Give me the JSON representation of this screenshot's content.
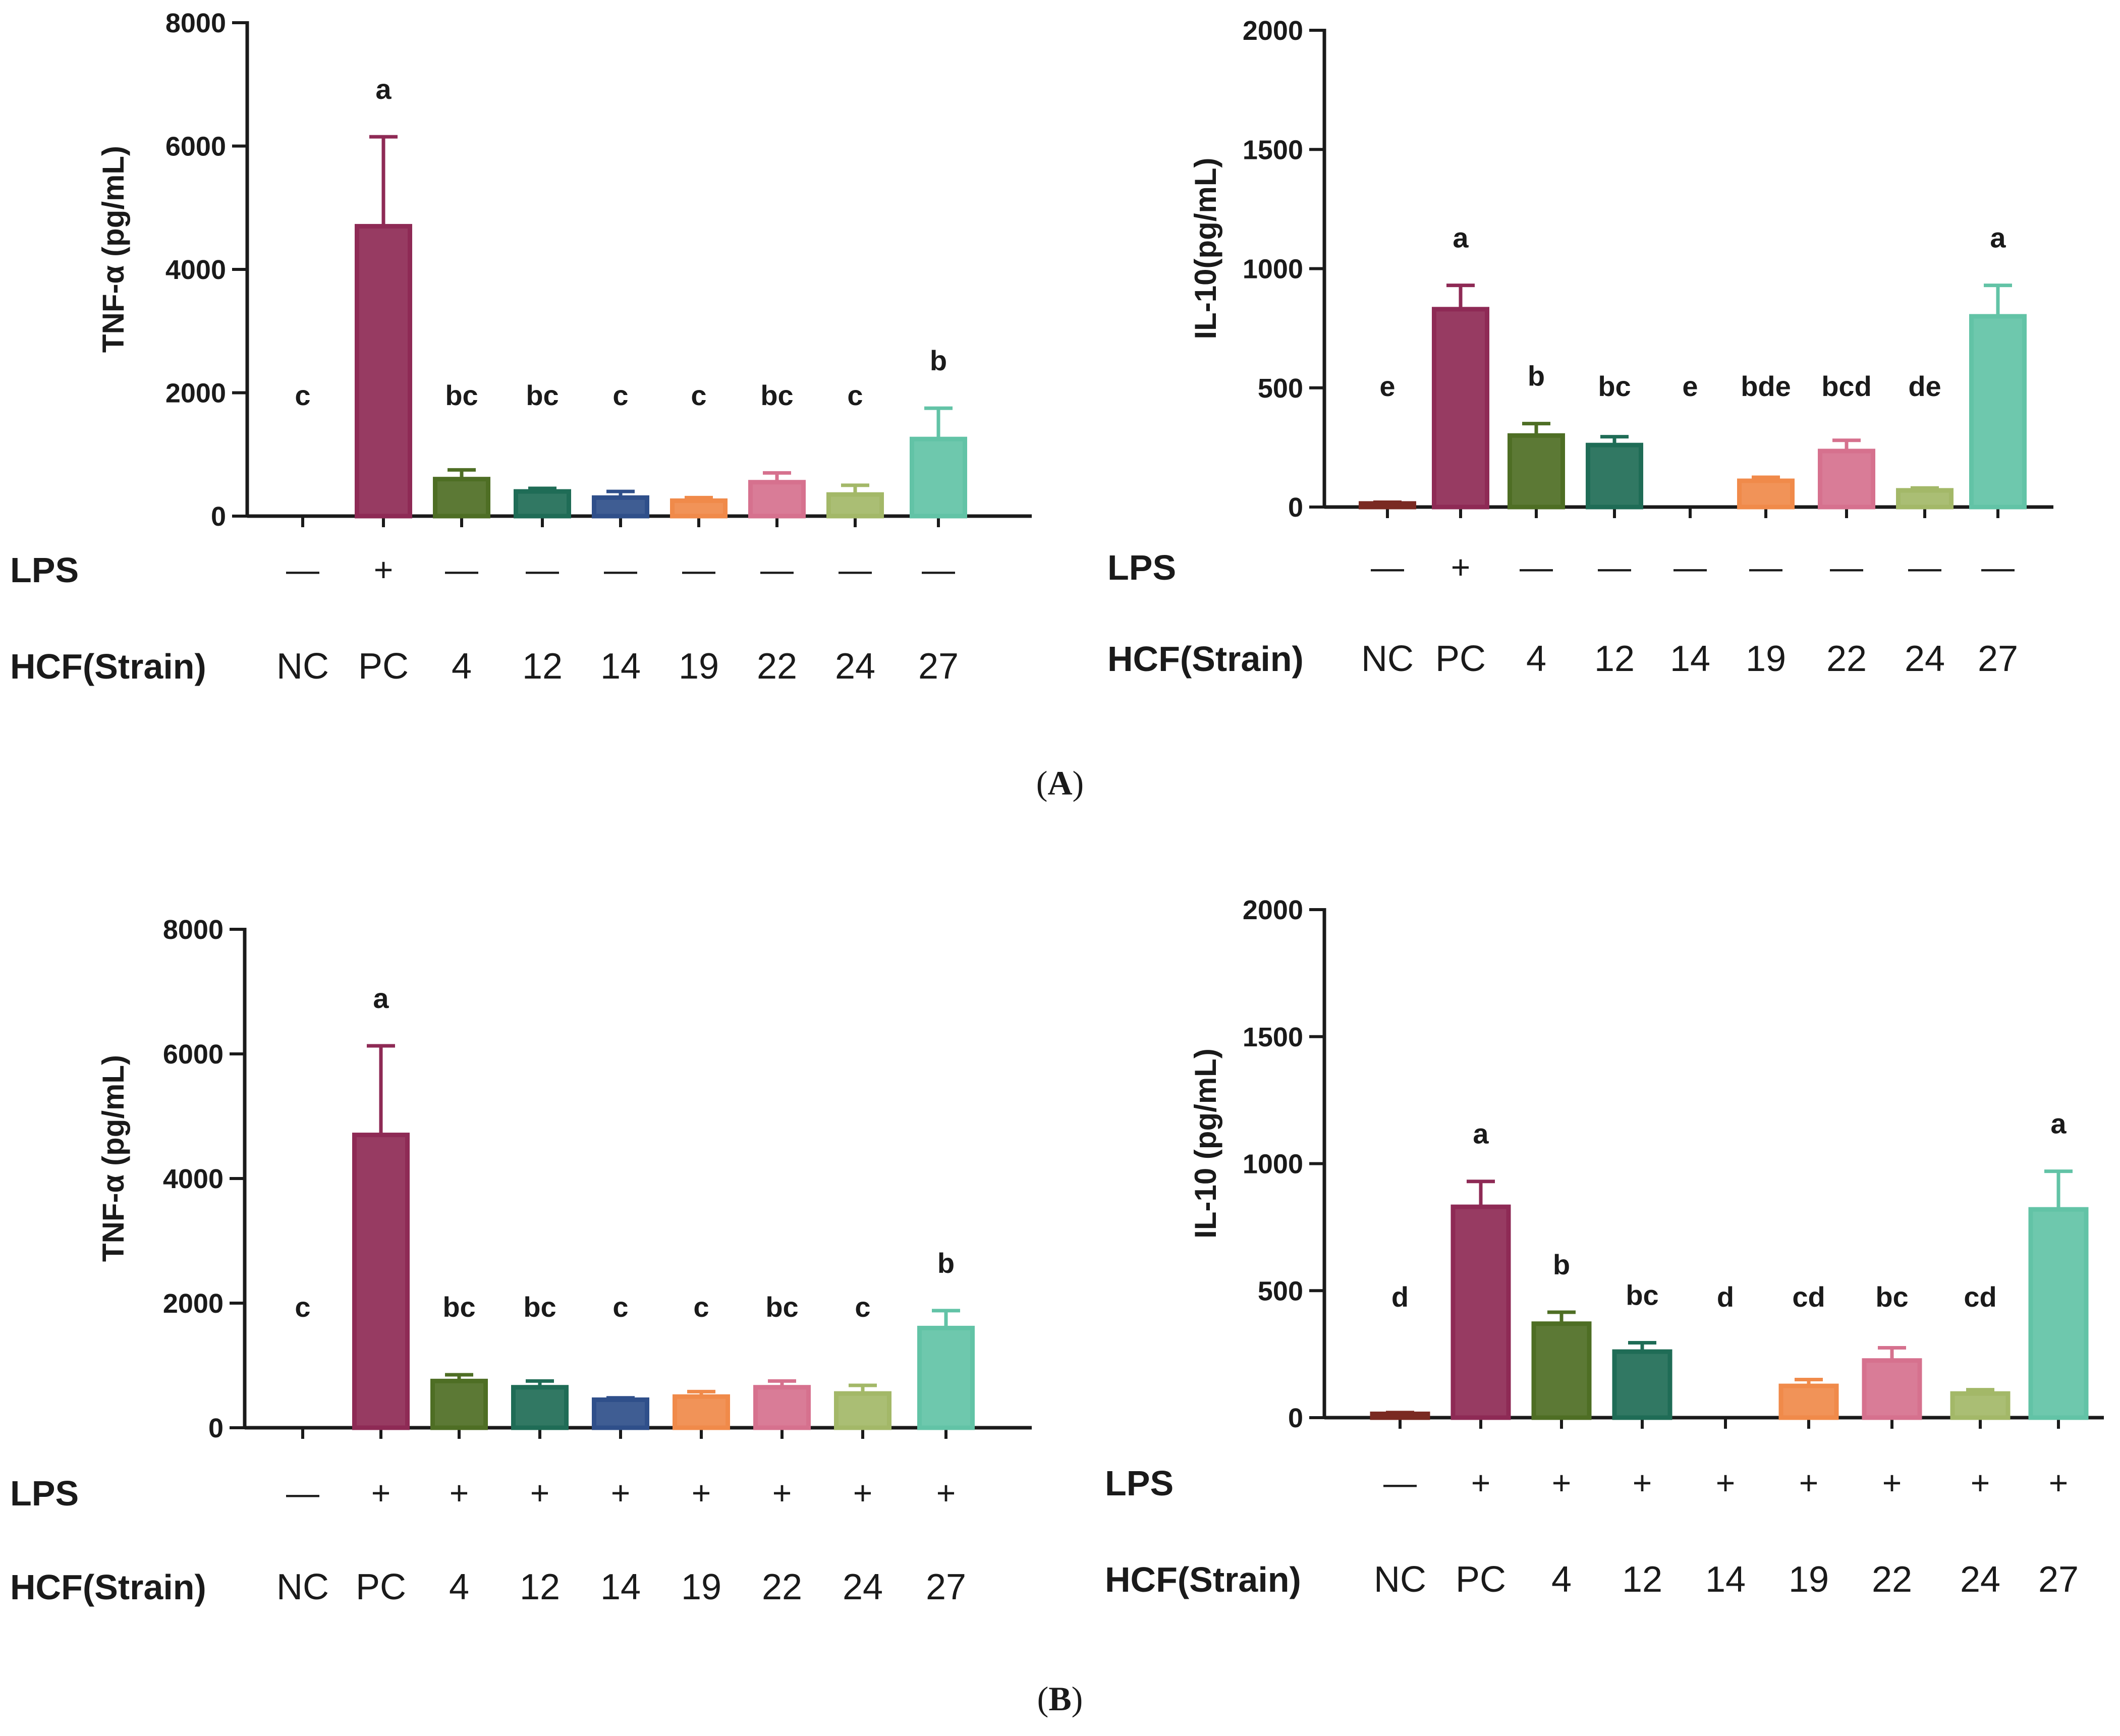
{
  "panels": [
    {
      "open": "(",
      "letter": "A",
      "close": ")"
    },
    {
      "open": "(",
      "letter": "B",
      "close": ")"
    }
  ],
  "row_labels": {
    "lps": "LPS",
    "strain": "HCF(Strain)"
  },
  "colors": [
    "#7a2a22",
    "#8e2a55",
    "#4e6e24",
    "#1f6c56",
    "#2f4f8a",
    "#f08a4a",
    "#d6718e",
    "#a3b868",
    "#62c3a6"
  ],
  "chart_data": [
    {
      "type": "bar",
      "panel": "A",
      "ylabel": "TNF-α (pg/mL)",
      "ylim": [
        0,
        8000
      ],
      "yticks": [
        "0",
        "2000",
        "4000",
        "6000",
        "8000"
      ],
      "categories": [
        "NC",
        "PC",
        "4",
        "12",
        "14",
        "19",
        "22",
        "24",
        "27"
      ],
      "values": [
        0,
        4700,
        600,
        400,
        300,
        250,
        550,
        350,
        1250
      ],
      "errors": [
        0,
        1450,
        150,
        50,
        100,
        50,
        150,
        150,
        500
      ],
      "letters": [
        "c",
        "a",
        "bc",
        "bc",
        "c",
        "c",
        "bc",
        "c",
        "b"
      ],
      "lps": [
        "—",
        "+",
        "—",
        "—",
        "—",
        "—",
        "—",
        "—",
        "—"
      ]
    },
    {
      "type": "bar",
      "panel": "A",
      "ylabel": "IL-10(pg/mL)",
      "ylim": [
        0,
        2000
      ],
      "yticks": [
        "0",
        "500",
        "1000",
        "1500",
        "2000"
      ],
      "categories": [
        "NC",
        "PC",
        "4",
        "12",
        "14",
        "19",
        "22",
        "24",
        "27"
      ],
      "values": [
        15,
        830,
        300,
        260,
        0,
        110,
        235,
        70,
        800
      ],
      "errors": [
        5,
        100,
        50,
        35,
        0,
        15,
        45,
        10,
        130
      ],
      "letters": [
        "e",
        "a",
        "b",
        "bc",
        "e",
        "bde",
        "bcd",
        "de",
        "a"
      ],
      "lps": [
        "—",
        "+",
        "—",
        "—",
        "—",
        "—",
        "—",
        "—",
        "—"
      ]
    },
    {
      "type": "bar",
      "panel": "B",
      "ylabel": "TNF-α (pg/mL)",
      "ylim": [
        0,
        8000
      ],
      "yticks": [
        "0",
        "2000",
        "4000",
        "6000",
        "8000"
      ],
      "categories": [
        "NC",
        "PC",
        "4",
        "12",
        "14",
        "19",
        "22",
        "24",
        "27"
      ],
      "values": [
        0,
        4700,
        750,
        650,
        450,
        500,
        650,
        550,
        1600
      ],
      "errors": [
        0,
        1430,
        100,
        100,
        30,
        80,
        100,
        130,
        280
      ],
      "letters": [
        "c",
        "a",
        "bc",
        "bc",
        "c",
        "c",
        "bc",
        "c",
        "b"
      ],
      "lps": [
        "—",
        "+",
        "+",
        "+",
        "+",
        "+",
        "+",
        "+",
        "+"
      ]
    },
    {
      "type": "bar",
      "panel": "B",
      "ylabel": "IL-10 (pg/mL)",
      "ylim": [
        0,
        2000
      ],
      "yticks": [
        "0",
        "500",
        "1000",
        "1500",
        "2000"
      ],
      "categories": [
        "NC",
        "PC",
        "4",
        "12",
        "14",
        "19",
        "22",
        "24",
        "27"
      ],
      "values": [
        15,
        830,
        370,
        260,
        0,
        125,
        225,
        95,
        820
      ],
      "errors": [
        5,
        100,
        45,
        35,
        0,
        25,
        50,
        15,
        150
      ],
      "letters": [
        "d",
        "a",
        "b",
        "bc",
        "d",
        "cd",
        "bc",
        "cd",
        "a"
      ],
      "lps": [
        "—",
        "+",
        "+",
        "+",
        "+",
        "+",
        "+",
        "+",
        "+"
      ]
    }
  ]
}
